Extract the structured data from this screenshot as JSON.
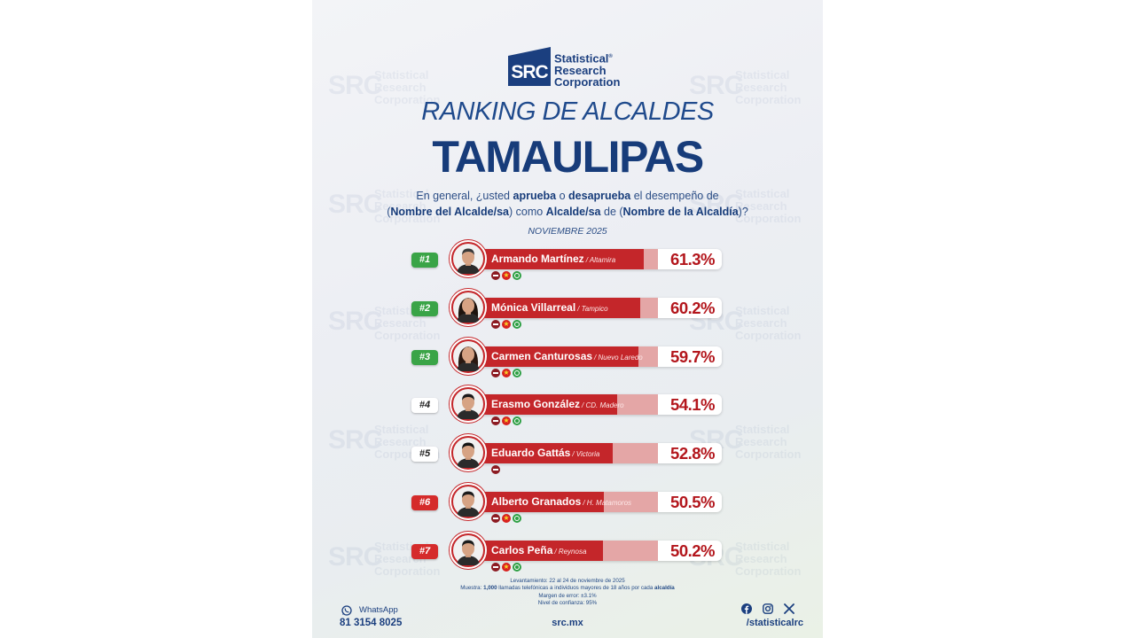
{
  "brand": {
    "logo_letters": "SRC",
    "name_line1": "Statistical",
    "name_line2": "Research",
    "name_line3": "Corporation",
    "registered": "®",
    "primary_color": "#1b3f7f"
  },
  "title": {
    "ranking": "RANKING DE ALCALDES",
    "state": "TAMAULIPAS"
  },
  "question": {
    "p1": "En general, ¿usted ",
    "aprueba": "aprueba",
    "p2": " o ",
    "desaprueba": "desaprueba",
    "p3": " el desempeño de",
    "p4": "(",
    "nombre_alcalde": "Nombre del Alcalde/sa",
    "p5": ") como ",
    "alcalde": "Alcalde/sa",
    "p6": " de (",
    "nombre_alcaldia": "Nombre de la Alcaldía",
    "p7": ")?"
  },
  "survey_date": "NOVIEMBRE 2025",
  "rankings": [
    {
      "rank": "#1",
      "name": "Armando Martínez",
      "city": "/ Altamira",
      "pct": "61.3%",
      "value": 61.3,
      "badge": "green",
      "parties": [
        "morena",
        "pt",
        "pvem"
      ]
    },
    {
      "rank": "#2",
      "name": "Mónica Villarreal",
      "city": "/ Tampico",
      "pct": "60.2%",
      "value": 60.2,
      "badge": "green",
      "parties": [
        "morena",
        "pt",
        "pvem"
      ]
    },
    {
      "rank": "#3",
      "name": "Carmen Canturosas",
      "city": "/ Nuevo Laredo",
      "pct": "59.7%",
      "value": 59.7,
      "badge": "green",
      "parties": [
        "morena",
        "pt",
        "pvem"
      ]
    },
    {
      "rank": "#4",
      "name": "Erasmo González",
      "city": "/ CD. Madero",
      "pct": "54.1%",
      "value": 54.1,
      "badge": "white",
      "parties": [
        "morena",
        "pt",
        "pvem"
      ]
    },
    {
      "rank": "#5",
      "name": "Eduardo Gattás",
      "city": "/ Victoria",
      "pct": "52.8%",
      "value": 52.8,
      "badge": "white",
      "parties": [
        "morena"
      ]
    },
    {
      "rank": "#6",
      "name": "Alberto Granados",
      "city": "/ H. Matamoros",
      "pct": "50.5%",
      "value": 50.5,
      "badge": "red",
      "parties": [
        "morena",
        "pt",
        "pvem"
      ]
    },
    {
      "rank": "#7",
      "name": "Carlos Peña",
      "city": "/ Reynosa",
      "pct": "50.2%",
      "value": 50.2,
      "badge": "red",
      "parties": [
        "morena",
        "pt",
        "pvem"
      ]
    }
  ],
  "colors": {
    "bar_fill": "#c4262a",
    "bar_back": "#e4a6a6",
    "rank_green": "#3aa447",
    "rank_red": "#d52b2b"
  },
  "methodology": {
    "line1": "Levantamiento: 22 al 24 de noviembre de 2025",
    "line2_a": "Muestra: ",
    "line2_b": "1,000",
    "line2_c": " llamadas telefónicas a individuos mayores de 18 años por cada ",
    "line2_d": "alcaldía",
    "line3": "Margen de error: ±3.1%",
    "line4": "Nivel de confianza: 95%"
  },
  "footer": {
    "whatsapp_label": "WhatsApp",
    "whatsapp_number": "81 3154 8025",
    "site": "src.mx",
    "social_handle": "/statisticalrc",
    "icons": [
      "whatsapp-icon",
      "facebook-icon",
      "instagram-icon",
      "x-icon"
    ]
  }
}
